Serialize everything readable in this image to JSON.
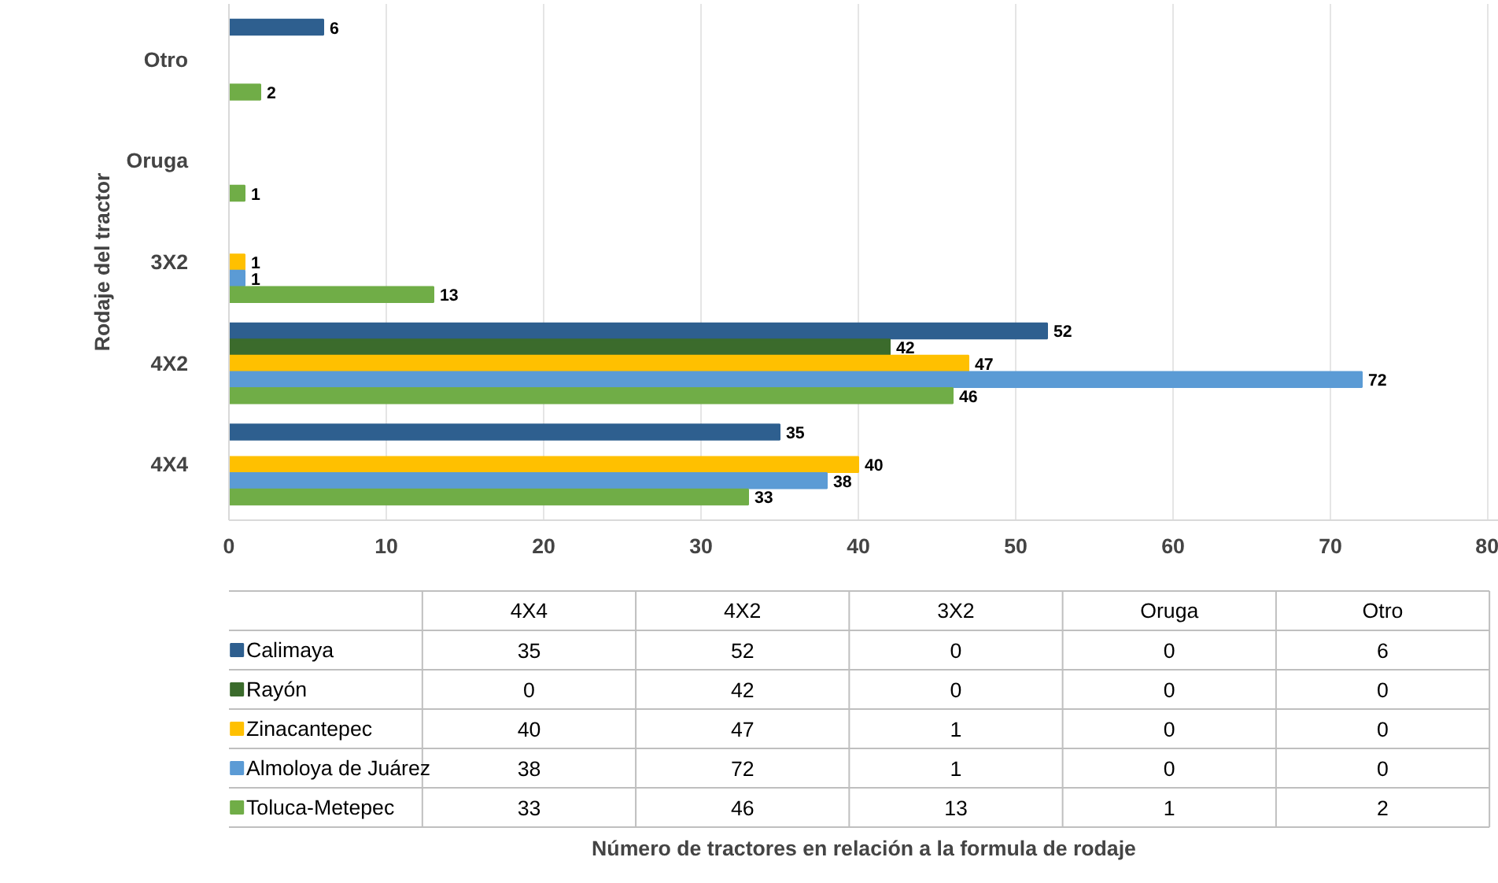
{
  "chart_data": [
    {
      "type": "bar",
      "orientation": "horizontal",
      "ylabel": "Rodaje del tractor",
      "categories": [
        "Otro",
        "Oruga",
        "3X2",
        "4X2",
        "4X4"
      ],
      "series": [
        {
          "color": "#2e5f8f",
          "values": [
            6,
            0,
            0,
            52,
            35
          ],
          "value_labels": [
            "6",
            null,
            null,
            "52",
            "35"
          ]
        },
        {
          "color": "#3b6b2c",
          "values": [
            0,
            0,
            0,
            42,
            0
          ],
          "value_labels": [
            null,
            null,
            null,
            "42",
            null
          ]
        },
        {
          "color": "#ffc000",
          "values": [
            0,
            0,
            1,
            47,
            40
          ],
          "value_labels": [
            null,
            null,
            "1",
            "47",
            "40"
          ]
        },
        {
          "color": "#5b9bd5",
          "values": [
            0,
            0,
            1,
            72,
            38
          ],
          "value_labels": [
            null,
            null,
            "1",
            "72",
            "38"
          ]
        },
        {
          "color": "#70ad47",
          "values": [
            2,
            1,
            13,
            46,
            33
          ],
          "value_labels": [
            "2",
            "1",
            "13",
            "46",
            "33"
          ]
        }
      ],
      "xlim": [
        0,
        80
      ],
      "xticks": [
        0,
        10,
        20,
        30,
        40,
        50,
        60,
        70,
        80
      ],
      "grid": "x"
    },
    {
      "type": "other",
      "xlabel": "Número de tractores en relación a la formula de rodaje",
      "categories": [
        "4X4",
        "4X2",
        "3X2",
        "Oruga",
        "Otro"
      ],
      "series": [
        {
          "name": "Calimaya",
          "color": "#2e5f8f",
          "values": [
            35,
            52,
            0,
            0,
            6
          ]
        },
        {
          "name": "Rayón",
          "color": "#3b6b2c",
          "values": [
            0,
            42,
            0,
            0,
            0
          ]
        },
        {
          "name": "Zinacantepec",
          "color": "#ffc000",
          "values": [
            40,
            47,
            1,
            0,
            0
          ]
        },
        {
          "name": "Almoloya de Juárez",
          "color": "#5b9bd5",
          "values": [
            38,
            72,
            1,
            0,
            0
          ]
        },
        {
          "name": "Toluca-Metepec",
          "color": "#70ad47",
          "values": [
            33,
            46,
            13,
            1,
            2
          ]
        }
      ],
      "legend": "left",
      "data_labels": true
    }
  ]
}
